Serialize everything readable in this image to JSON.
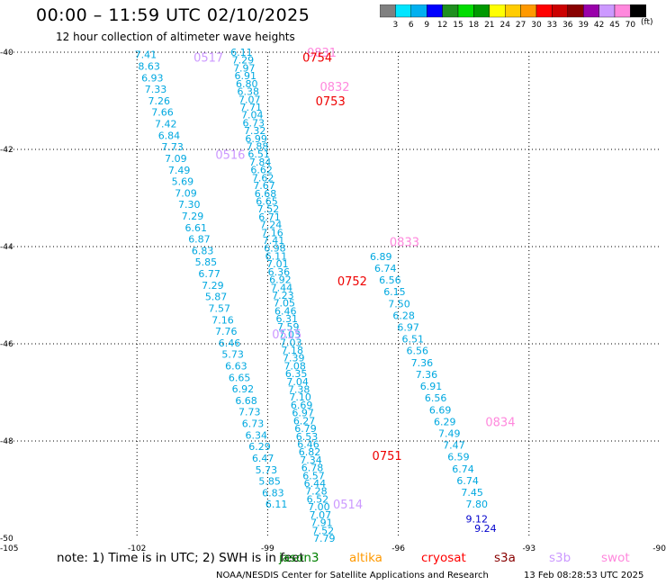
{
  "header": {
    "title": "00:00 – 11:59 UTC 02/10/2025",
    "subtitle": "12 hour collection of altimeter wave heights"
  },
  "colorbar": {
    "unit": "(ft)",
    "ticks": [
      "3",
      "6",
      "9",
      "12",
      "15",
      "18",
      "21",
      "24",
      "27",
      "30",
      "33",
      "36",
      "39",
      "42",
      "45",
      "70"
    ],
    "colors": [
      "#808080",
      "#00e5ff",
      "#00b0f0",
      "#0000ff",
      "#1f8f1f",
      "#00dd00",
      "#009900",
      "#ffff00",
      "#ffcc00",
      "#ff9900",
      "#ff0000",
      "#cc0000",
      "#880000",
      "#9900aa",
      "#cc99ff",
      "#ff88dd",
      "#000000"
    ]
  },
  "footer": {
    "note": "note:  1) Time is in UTC;  2) SWH is in feet",
    "legend": [
      {
        "name": "jason3",
        "color": "#008000"
      },
      {
        "name": "altika",
        "color": "#ff9900"
      },
      {
        "name": "cryosat",
        "color": "#ff0000"
      },
      {
        "name": "s3a",
        "color": "#880000"
      },
      {
        "name": "s3b",
        "color": "#cc99ff"
      },
      {
        "name": "swot",
        "color": "#ff88dd"
      }
    ],
    "credit": "NOAA/NESDIS Center for Satellite Applications and Research",
    "timestamp": "13 Feb 08:28:53 UTC 2025"
  },
  "chart_data": {
    "type": "scatter",
    "title": "00:00 – 11:59 UTC 02/10/2025",
    "xlim": [
      -105,
      -90
    ],
    "ylim": [
      -50,
      -40
    ],
    "xticks": [
      -105,
      -102,
      -99,
      -96,
      -93,
      -90
    ],
    "xtick_labels": [
      "-105",
      "-102",
      "-99",
      "-96",
      "-93",
      "-90"
    ],
    "yticks": [
      -40,
      -42,
      -44,
      -46,
      -48,
      -50
    ],
    "grid": true,
    "tracks": [
      {
        "name": "track-a",
        "color": "#00a8e0",
        "lon_start": -101.8,
        "lat_start": -40.05,
        "lon_end": -98.8,
        "lat_end": -49.3,
        "values": [
          "7.41",
          "8.63",
          "6.93",
          "7.33",
          "7.26",
          "7.66",
          "7.42",
          "6.84",
          "7.73",
          "7.09",
          "7.49",
          "5.69",
          "7.09",
          "7.30",
          "7.29",
          "6.61",
          "6.87",
          "6.83",
          "5.85",
          "6.77",
          "7.29",
          "5.87",
          "7.57",
          "7.16",
          "7.76",
          "6.46",
          "5.73",
          "6.63",
          "6.65",
          "6.92",
          "6.68",
          "7.73",
          "6.73",
          "6.34",
          "6.29",
          "6.47",
          "5.73",
          "5.85",
          "6.83",
          "6.11"
        ]
      },
      {
        "name": "track-b",
        "color": "#00a8e0",
        "lon_start": -99.6,
        "lat_start": -40.0,
        "lon_end": -97.7,
        "lat_end": -50.0,
        "values": [
          "6.11",
          "7.29",
          "7.97",
          "6.91",
          "6.80",
          "6.38",
          "7.07",
          "7.71",
          "7.04",
          "6.73",
          "7.32",
          "6.99",
          "7.88",
          "6.51",
          "7.84",
          "6.62",
          "7.62",
          "7.67",
          "6.68",
          "6.65",
          "7.52",
          "6.71",
          "7.24",
          "7.16",
          "7.41",
          "6.98",
          "6.11",
          "7.01",
          "6.36",
          "6.92",
          "7.44",
          "7.23",
          "7.05",
          "6.46",
          "6.31",
          "7.59",
          "7.03",
          "7.03",
          "7.18",
          "7.39",
          "7.08",
          "6.35",
          "7.04",
          "7.38",
          "7.10",
          "6.69",
          "6.97",
          "6.27",
          "6.79",
          "6.53",
          "6.46",
          "6.82",
          "7.34",
          "6.78",
          "6.57",
          "6.44",
          "7.28",
          "6.52",
          "7.00",
          "7.07",
          "7.91",
          "7.52",
          "7.79"
        ]
      },
      {
        "name": "track-c",
        "color": "#00a8e0",
        "lon_start": -96.4,
        "lat_start": -44.2,
        "lon_end": -94.2,
        "lat_end": -49.3,
        "values": [
          "6.89",
          "6.74",
          "6.56",
          "6.15",
          "7.50",
          "6.28",
          "6.97",
          "6.51",
          "6.56",
          "7.36",
          "7.36",
          "6.91",
          "6.56",
          "6.69",
          "6.29",
          "7.49",
          "7.47",
          "6.59",
          "6.74",
          "6.74",
          "7.45",
          "7.80"
        ]
      },
      {
        "name": "track-c-high",
        "color": "#0000cc",
        "lon_start": -94.2,
        "lat_start": -49.6,
        "lon_end": -94.0,
        "lat_end": -49.8,
        "values": [
          "9.12",
          "9.24"
        ]
      }
    ],
    "time_labels": [
      {
        "text": "0517",
        "color": "#cc99ff",
        "lon": -100.7,
        "lat": -40.1
      },
      {
        "text": "0516",
        "color": "#cc99ff",
        "lon": -100.2,
        "lat": -42.1
      },
      {
        "text": "0515",
        "color": "#cc99ff",
        "lon": -98.9,
        "lat": -45.8
      },
      {
        "text": "0514",
        "color": "#cc99ff",
        "lon": -97.5,
        "lat": -49.3
      },
      {
        "text": "0831",
        "color": "#ff88dd",
        "lon": -98.1,
        "lat": -40.0
      },
      {
        "text": "0832",
        "color": "#ff88dd",
        "lon": -97.8,
        "lat": -40.7
      },
      {
        "text": "0833",
        "color": "#ff88dd",
        "lon": -96.2,
        "lat": -43.9
      },
      {
        "text": "0834",
        "color": "#ff88dd",
        "lon": -94.0,
        "lat": -47.6
      },
      {
        "text": "0754",
        "color": "#ee0000",
        "lon": -98.2,
        "lat": -40.1
      },
      {
        "text": "0753",
        "color": "#ee0000",
        "lon": -97.9,
        "lat": -41.0
      },
      {
        "text": "0752",
        "color": "#ee0000",
        "lon": -97.4,
        "lat": -44.7
      },
      {
        "text": "0751",
        "color": "#ee0000",
        "lon": -96.6,
        "lat": -48.3
      }
    ]
  }
}
